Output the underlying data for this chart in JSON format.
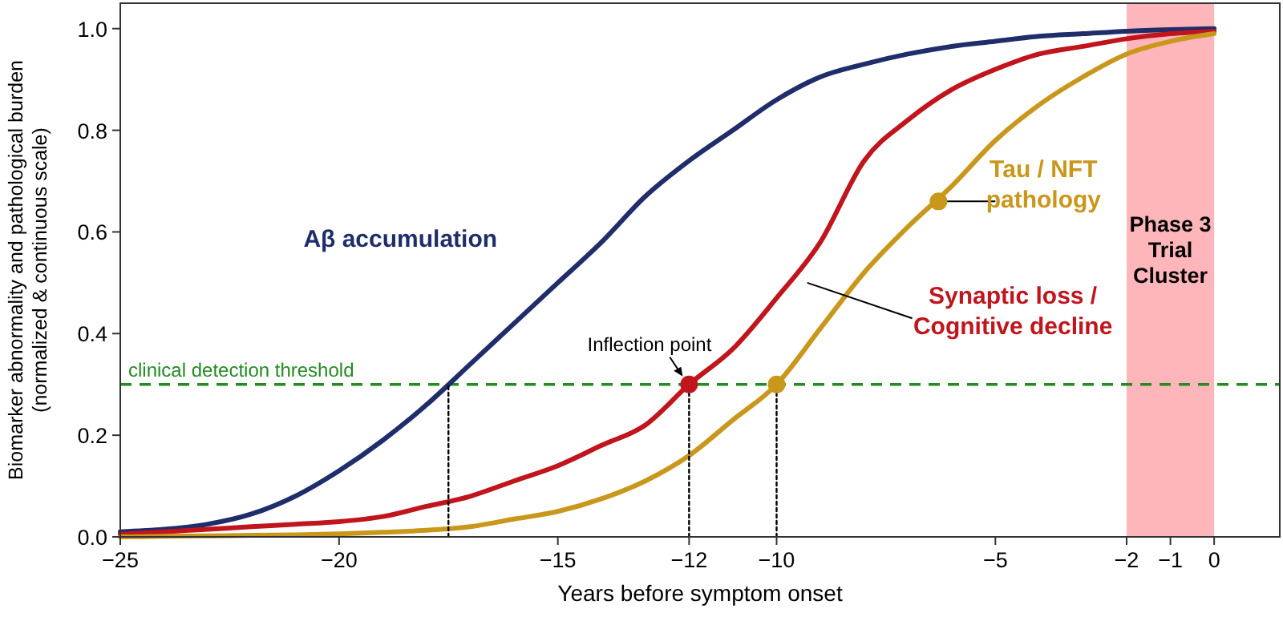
{
  "chart_data": {
    "type": "line",
    "xlabel": "Years before symptom onset",
    "ylabel": "Biomarker abnormality and pathological burden\n(normalized & continuous scale)",
    "x": [
      -25,
      -24,
      -23,
      -22,
      -21,
      -20,
      -19,
      -18,
      -17,
      -16,
      -15,
      -14,
      -13,
      -12,
      -11,
      -10,
      -9,
      -8,
      -7,
      -6,
      -5,
      -4,
      -3,
      -2,
      -1,
      0
    ],
    "series": [
      {
        "name": "Aβ accumulation",
        "color": "#1f2d6b",
        "values": [
          0.01,
          0.015,
          0.025,
          0.045,
          0.08,
          0.13,
          0.19,
          0.26,
          0.34,
          0.42,
          0.5,
          0.58,
          0.67,
          0.74,
          0.8,
          0.86,
          0.905,
          0.93,
          0.95,
          0.965,
          0.975,
          0.985,
          0.99,
          0.995,
          0.998,
          1.0
        ]
      },
      {
        "name": "Synaptic loss /\nCognitive decline",
        "color": "#c0151c",
        "values": [
          0.005,
          0.01,
          0.015,
          0.02,
          0.025,
          0.03,
          0.04,
          0.06,
          0.08,
          0.11,
          0.14,
          0.18,
          0.22,
          0.3,
          0.37,
          0.47,
          0.58,
          0.74,
          0.82,
          0.88,
          0.92,
          0.95,
          0.965,
          0.98,
          0.99,
          0.995
        ]
      },
      {
        "name": "Tau / NFT\npathology",
        "color": "#c9971c",
        "values": [
          0.0,
          0.001,
          0.002,
          0.003,
          0.004,
          0.006,
          0.009,
          0.013,
          0.02,
          0.035,
          0.05,
          0.075,
          0.11,
          0.16,
          0.23,
          0.3,
          0.41,
          0.52,
          0.61,
          0.69,
          0.78,
          0.85,
          0.905,
          0.95,
          0.975,
          0.99
        ]
      },
      {
        "type": "scatter",
        "color": "#c0151c",
        "x": [
          -12
        ],
        "values": [
          0.3
        ]
      },
      {
        "type": "scatter",
        "color": "#c9971c",
        "x": [
          -10,
          -6.3
        ],
        "values": [
          0.3,
          0.66
        ]
      },
      {
        "type": "line",
        "color": "#000000",
        "line_style": "dotted",
        "x": [
          -17.5,
          -17.5
        ],
        "values": [
          0,
          0.3
        ]
      },
      {
        "type": "line",
        "color": "#000000",
        "line_style": "dotted",
        "x": [
          -12,
          -12
        ],
        "values": [
          0,
          0.3
        ]
      },
      {
        "type": "line",
        "color": "#000000",
        "line_style": "dotted",
        "x": [
          -10,
          -10
        ],
        "values": [
          0,
          0.3
        ]
      }
    ],
    "xlim": [
      -25,
      1.5
    ],
    "ylim": [
      0,
      1.05
    ],
    "xticks": [
      -25,
      -20,
      -15,
      -12,
      -10,
      -5,
      -2,
      -1,
      0
    ],
    "yticks": [
      {
        "value": 0,
        "label": "0.0"
      },
      {
        "value": 0.2,
        "label": "0.2"
      },
      {
        "value": 0.4,
        "label": "0.4"
      },
      {
        "value": 0.6,
        "label": "0.6"
      },
      {
        "value": 0.8,
        "label": "0.8"
      },
      {
        "value": 1,
        "label": "1.0"
      }
    ],
    "ref_lines": [
      {
        "axis": "y",
        "value": 0.3,
        "label": "clinical detection threshold",
        "color": "#228b22",
        "line_style": "dashed"
      }
    ],
    "bands": [
      {
        "axis": "x",
        "from": -2,
        "to": 0,
        "label": "Phase 3 Trial Cluster",
        "color": "#ffb6bb"
      }
    ],
    "annotations": [
      {
        "text": "Inflection point",
        "x": -12,
        "y": 0.3
      }
    ],
    "grid": false,
    "legend": false
  }
}
